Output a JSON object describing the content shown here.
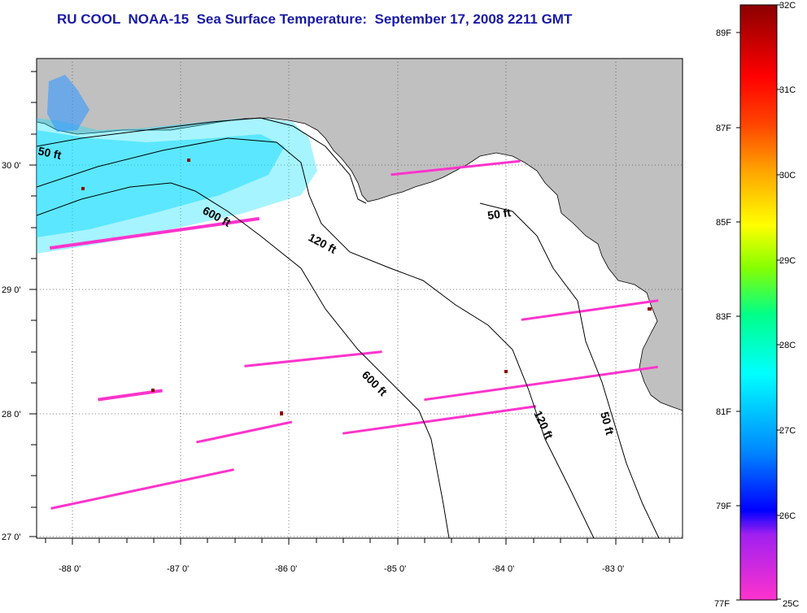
{
  "title": "RU COOL  NOAA-15  Sea Surface Temperature:  September 17, 2008 2211 GMT",
  "colors": {
    "title": "#1a1aa8",
    "land": "#c0c0c0",
    "ocean": "#ffffff",
    "grid": "#000000"
  },
  "map": {
    "lon_labels": [
      "-88 0'",
      "-87 0'",
      "-86 0'",
      "-85 0'",
      "-84 0'",
      "-83 0'"
    ],
    "lat_labels": [
      "30 0'",
      "29 0'",
      "28 0'",
      "27 0'"
    ],
    "grid": "dotted",
    "depth_contours": [
      {
        "label": "50 ft"
      },
      {
        "label": "600 ft"
      },
      {
        "label": "120 ft"
      },
      {
        "label": "50 ft"
      },
      {
        "label": "600 ft"
      },
      {
        "label": "120 ft"
      },
      {
        "label": "50 ft"
      }
    ]
  },
  "colorbar": {
    "celsius_labels": [
      "32C",
      "31C",
      "30C",
      "29C",
      "28C",
      "27C",
      "26C",
      "25C"
    ],
    "fahrenheit_labels": [
      "89F",
      "87F",
      "85F",
      "83F",
      "81F",
      "79F",
      "77F"
    ],
    "stops": [
      "#ff33cc",
      "#a020f0",
      "#0000ff",
      "#0088ff",
      "#00ffff",
      "#00ff88",
      "#88ff00",
      "#ffff00",
      "#ffa500",
      "#ff4400",
      "#ff0000",
      "#8b0000"
    ]
  }
}
